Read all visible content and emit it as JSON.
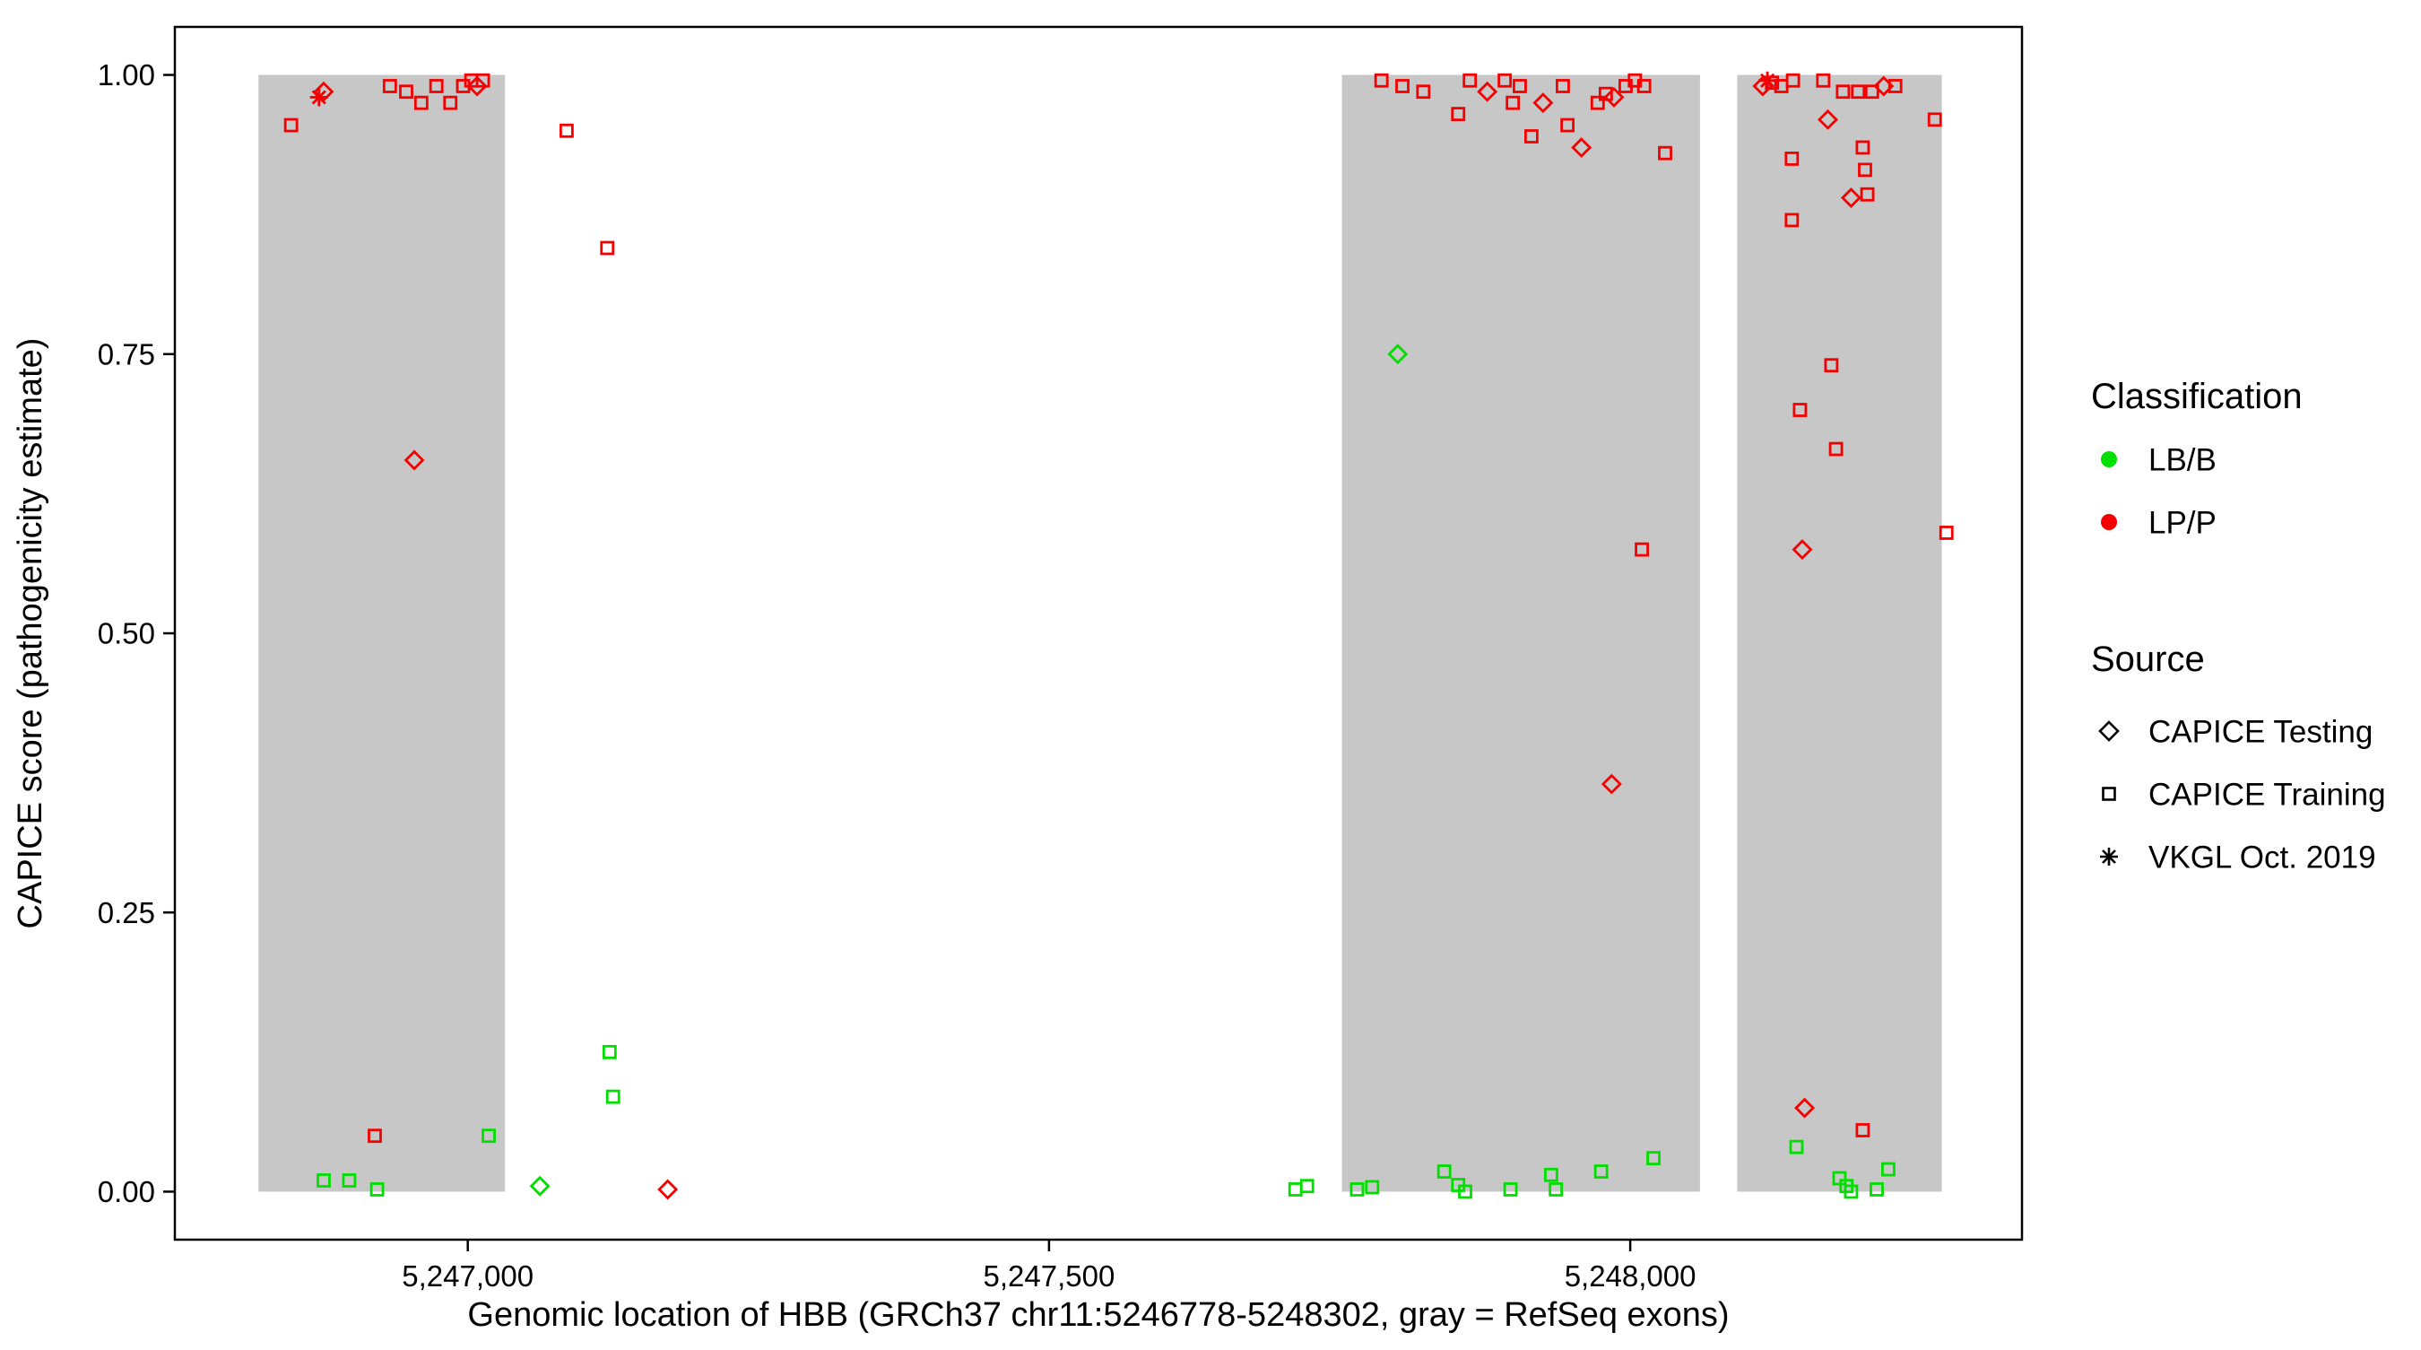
{
  "chart_data": {
    "type": "scatter",
    "title": "",
    "xlabel": "Genomic location of HBB (GRCh37 chr11:5246778-5248302, gray = RefSeq exons)",
    "ylabel": "CAPICE score (pathogenicity estimate)",
    "xlim": [
      5246748,
      5248337
    ],
    "ylim": [
      -0.043,
      1.043
    ],
    "grid": "off",
    "x_ticks": [
      {
        "value": 5247000,
        "label": "5,247,000"
      },
      {
        "value": 5247500,
        "label": "5,247,500"
      },
      {
        "value": 5248000,
        "label": "5,248,000"
      }
    ],
    "y_ticks": [
      {
        "value": 0.0,
        "label": "0.00"
      },
      {
        "value": 0.25,
        "label": "0.25"
      },
      {
        "value": 0.5,
        "label": "0.50"
      },
      {
        "value": 0.75,
        "label": "0.75"
      },
      {
        "value": 1.0,
        "label": "1.00"
      }
    ],
    "exon_color": "#C7C7C7",
    "exon_regions": [
      {
        "start": 5246820,
        "end": 5247032
      },
      {
        "start": 5247752,
        "end": 5248060
      },
      {
        "start": 5248092,
        "end": 5248268
      }
    ],
    "classification_colors": {
      "LB/B": "#00DF00",
      "LP/P": "#F40000"
    },
    "source_shapes": {
      "testing": "diamond",
      "training": "square",
      "vkgl": "asterisk"
    },
    "point_fields": [
      "x",
      "y",
      "classification",
      "source"
    ],
    "points": [
      [
        5246848,
        0.955,
        "LP/P",
        "training"
      ],
      [
        5246872,
        0.98,
        "LP/P",
        "vkgl"
      ],
      [
        5246876,
        0.985,
        "LP/P",
        "testing"
      ],
      [
        5246933,
        0.99,
        "LP/P",
        "training"
      ],
      [
        5246947,
        0.985,
        "LP/P",
        "training"
      ],
      [
        5246960,
        0.975,
        "LP/P",
        "training"
      ],
      [
        5246973,
        0.99,
        "LP/P",
        "training"
      ],
      [
        5246985,
        0.975,
        "LP/P",
        "training"
      ],
      [
        5246996,
        0.99,
        "LP/P",
        "training"
      ],
      [
        5247003,
        0.995,
        "LP/P",
        "training"
      ],
      [
        5247008,
        0.99,
        "LP/P",
        "testing"
      ],
      [
        5247013,
        0.995,
        "LP/P",
        "training"
      ],
      [
        5246954,
        0.655,
        "LP/P",
        "testing"
      ],
      [
        5247085,
        0.95,
        "LP/P",
        "training"
      ],
      [
        5247120,
        0.845,
        "LP/P",
        "training"
      ],
      [
        5246876,
        0.01,
        "LB/B",
        "training"
      ],
      [
        5246898,
        0.01,
        "LB/B",
        "training"
      ],
      [
        5246920,
        0.05,
        "LP/P",
        "training"
      ],
      [
        5246922,
        0.002,
        "LB/B",
        "training"
      ],
      [
        5247018,
        0.05,
        "LB/B",
        "training"
      ],
      [
        5247062,
        0.005,
        "LB/B",
        "testing"
      ],
      [
        5247122,
        0.125,
        "LB/B",
        "training"
      ],
      [
        5247125,
        0.085,
        "LB/B",
        "training"
      ],
      [
        5247172,
        0.002,
        "LP/P",
        "testing"
      ],
      [
        5247712,
        0.002,
        "LB/B",
        "training"
      ],
      [
        5247722,
        0.005,
        "LB/B",
        "training"
      ],
      [
        5247765,
        0.002,
        "LB/B",
        "training"
      ],
      [
        5247778,
        0.004,
        "LB/B",
        "training"
      ],
      [
        5247840,
        0.018,
        "LB/B",
        "training"
      ],
      [
        5247852,
        0.006,
        "LB/B",
        "training"
      ],
      [
        5247858,
        0.0,
        "LB/B",
        "training"
      ],
      [
        5247897,
        0.002,
        "LB/B",
        "training"
      ],
      [
        5247932,
        0.015,
        "LB/B",
        "training"
      ],
      [
        5247936,
        0.002,
        "LB/B",
        "training"
      ],
      [
        5247975,
        0.018,
        "LB/B",
        "training"
      ],
      [
        5248020,
        0.03,
        "LB/B",
        "training"
      ],
      [
        5247786,
        0.995,
        "LP/P",
        "training"
      ],
      [
        5247804,
        0.99,
        "LP/P",
        "training"
      ],
      [
        5247822,
        0.985,
        "LP/P",
        "training"
      ],
      [
        5247852,
        0.965,
        "LP/P",
        "training"
      ],
      [
        5247862,
        0.995,
        "LP/P",
        "training"
      ],
      [
        5247877,
        0.985,
        "LP/P",
        "testing"
      ],
      [
        5247892,
        0.995,
        "LP/P",
        "training"
      ],
      [
        5247899,
        0.975,
        "LP/P",
        "training"
      ],
      [
        5247905,
        0.99,
        "LP/P",
        "training"
      ],
      [
        5247915,
        0.945,
        "LP/P",
        "training"
      ],
      [
        5247925,
        0.975,
        "LP/P",
        "testing"
      ],
      [
        5247942,
        0.99,
        "LP/P",
        "training"
      ],
      [
        5247946,
        0.955,
        "LP/P",
        "training"
      ],
      [
        5247958,
        0.935,
        "LP/P",
        "testing"
      ],
      [
        5247972,
        0.975,
        "LP/P",
        "training"
      ],
      [
        5247979,
        0.983,
        "LP/P",
        "training"
      ],
      [
        5247986,
        0.98,
        "LP/P",
        "testing"
      ],
      [
        5247996,
        0.99,
        "LP/P",
        "training"
      ],
      [
        5248004,
        0.995,
        "LP/P",
        "training"
      ],
      [
        5248012,
        0.99,
        "LP/P",
        "training"
      ],
      [
        5248030,
        0.93,
        "LP/P",
        "training"
      ],
      [
        5247800,
        0.75,
        "LB/B",
        "testing"
      ],
      [
        5248010,
        0.575,
        "LP/P",
        "training"
      ],
      [
        5247984,
        0.365,
        "LP/P",
        "testing"
      ],
      [
        5248118,
        0.995,
        "LP/P",
        "vkgl"
      ],
      [
        5248114,
        0.99,
        "LP/P",
        "testing"
      ],
      [
        5248122,
        0.993,
        "LP/P",
        "training"
      ],
      [
        5248130,
        0.99,
        "LP/P",
        "training"
      ],
      [
        5248140,
        0.995,
        "LP/P",
        "training"
      ],
      [
        5248166,
        0.995,
        "LP/P",
        "training"
      ],
      [
        5248170,
        0.96,
        "LP/P",
        "testing"
      ],
      [
        5248183,
        0.985,
        "LP/P",
        "training"
      ],
      [
        5248196,
        0.985,
        "LP/P",
        "training"
      ],
      [
        5248208,
        0.985,
        "LP/P",
        "training"
      ],
      [
        5248218,
        0.99,
        "LP/P",
        "testing"
      ],
      [
        5248228,
        0.99,
        "LP/P",
        "training"
      ],
      [
        5248262,
        0.96,
        "LP/P",
        "training"
      ],
      [
        5248139,
        0.925,
        "LP/P",
        "training"
      ],
      [
        5248200,
        0.935,
        "LP/P",
        "training"
      ],
      [
        5248202,
        0.915,
        "LP/P",
        "training"
      ],
      [
        5248190,
        0.89,
        "LP/P",
        "testing"
      ],
      [
        5248204,
        0.893,
        "LP/P",
        "training"
      ],
      [
        5248139,
        0.87,
        "LP/P",
        "training"
      ],
      [
        5248146,
        0.7,
        "LP/P",
        "training"
      ],
      [
        5248173,
        0.74,
        "LP/P",
        "training"
      ],
      [
        5248177,
        0.665,
        "LP/P",
        "training"
      ],
      [
        5248148,
        0.575,
        "LP/P",
        "testing"
      ],
      [
        5248272,
        0.59,
        "LP/P",
        "training"
      ],
      [
        5248150,
        0.075,
        "LP/P",
        "testing"
      ],
      [
        5248200,
        0.055,
        "LP/P",
        "training"
      ],
      [
        5248143,
        0.04,
        "LB/B",
        "training"
      ],
      [
        5248180,
        0.012,
        "LB/B",
        "training"
      ],
      [
        5248186,
        0.005,
        "LB/B",
        "training"
      ],
      [
        5248190,
        0.0,
        "LB/B",
        "training"
      ],
      [
        5248212,
        0.002,
        "LB/B",
        "training"
      ],
      [
        5248222,
        0.02,
        "LB/B",
        "training"
      ]
    ]
  },
  "legend": {
    "classification": {
      "title": "Classification",
      "items": [
        {
          "label": "LB/B",
          "key": "LB/B",
          "color": "#00DF00"
        },
        {
          "label": "LP/P",
          "key": "LP/P",
          "color": "#F40000"
        }
      ]
    },
    "source": {
      "title": "Source",
      "items": [
        {
          "label": "CAPICE Testing",
          "key": "testing",
          "shape": "diamond"
        },
        {
          "label": "CAPICE Training",
          "key": "training",
          "shape": "square"
        },
        {
          "label": "VKGL Oct. 2019",
          "key": "vkgl",
          "shape": "asterisk"
        }
      ]
    }
  }
}
